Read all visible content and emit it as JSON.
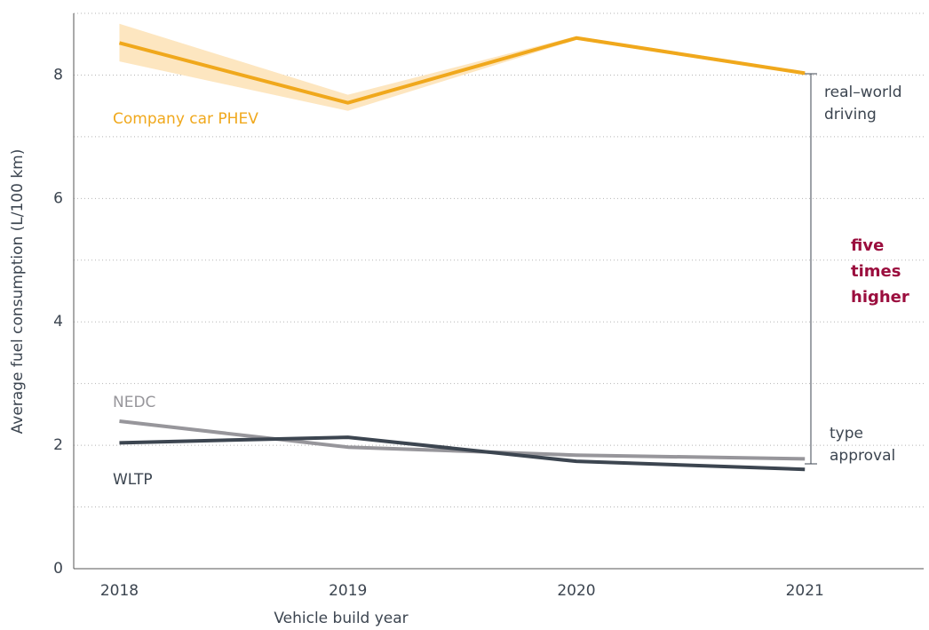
{
  "chart_data": {
    "type": "line",
    "x_label": "Vehicle build year",
    "y_label": "Average fuel consumption (L/100 km)",
    "x": [
      2018,
      2019,
      2020,
      2021
    ],
    "xlim": [
      2017.8,
      2021.52
    ],
    "xticks": [
      2018,
      2019,
      2020,
      2021
    ],
    "ylim": [
      0,
      9
    ],
    "yticks": [
      0,
      2,
      4,
      6,
      8
    ],
    "grid_yticks": [
      1,
      3,
      5,
      7,
      9
    ],
    "grid": true,
    "series": [
      {
        "name": "Company car PHEV",
        "color": "#f0a81c",
        "band_color": "#fde6c0",
        "values": [
          8.52,
          7.55,
          8.6,
          8.03
        ],
        "lower": [
          8.22,
          7.42,
          8.57,
          8.0
        ],
        "upper": [
          8.83,
          7.68,
          8.63,
          8.06
        ]
      },
      {
        "name": "NEDC",
        "color": "#97969b",
        "values": [
          2.39,
          1.97,
          1.84,
          1.78
        ]
      },
      {
        "name": "WLTP",
        "color": "#3c4550",
        "values": [
          2.04,
          2.13,
          1.74,
          1.61
        ]
      }
    ],
    "annotations": {
      "top": [
        "real–world",
        "driving"
      ],
      "middle": [
        "five",
        "times",
        "higher"
      ],
      "bottom": [
        "type",
        "approval"
      ],
      "middle_color": "#9b0e3e"
    }
  }
}
